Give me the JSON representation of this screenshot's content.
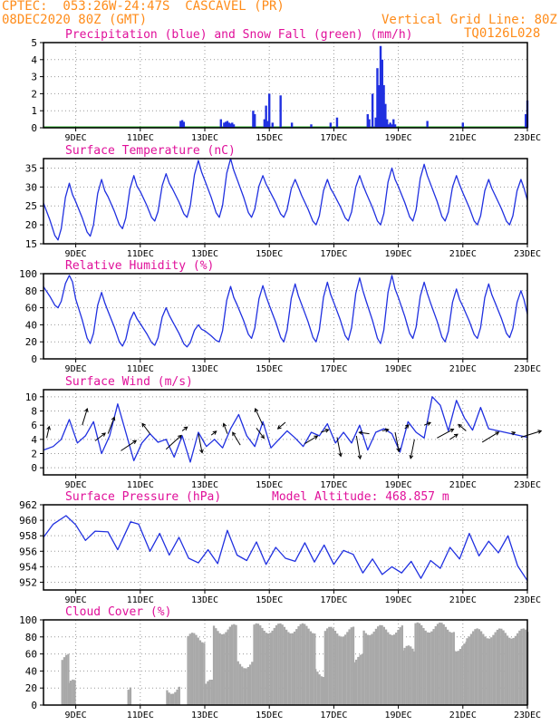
{
  "header": {
    "line1": "CPTEC:  053:26W-24:47S  CASCAVEL (PR)",
    "line2_left": "08DEC2020 80Z (GMT)",
    "line2_right": "Vertical Grid Line: 80Z",
    "line3_right": "TQ0126L028"
  },
  "colors": {
    "line": "#2030e0",
    "snow": "#22aa22",
    "cloud": "#a8a8a8",
    "title": "#e0109a",
    "header": "#ff8c1a"
  },
  "x_axis": {
    "labels": [
      "9DEC",
      "11DEC",
      "13DEC",
      "15DEC",
      "17DEC",
      "19DEC",
      "21DEC",
      "23DEC"
    ],
    "x_positions_days": [
      1,
      3,
      5,
      7,
      9,
      11,
      13,
      15
    ],
    "range_days": [
      0,
      15
    ]
  },
  "chart_data": [
    {
      "type": "bar",
      "title": "Precipitation (blue) and Snow Fall (green) (mm/h)",
      "ylim": [
        0,
        5
      ],
      "yticks": [
        0,
        1,
        2,
        3,
        4,
        5
      ],
      "series": [
        {
          "name": "Precipitation",
          "x": [
            4.25,
            4.3,
            4.35,
            5.5,
            5.6,
            5.65,
            5.7,
            5.75,
            5.8,
            5.85,
            5.9,
            6.5,
            6.55,
            6.85,
            6.9,
            6.95,
            7.0,
            7.1,
            7.35,
            7.7,
            8.3,
            8.9,
            9.1,
            10.05,
            10.1,
            10.2,
            10.3,
            10.35,
            10.4,
            10.45,
            10.5,
            10.55,
            10.6,
            10.65,
            10.7,
            10.75,
            10.8,
            10.85,
            10.9,
            11.9,
            13.0,
            14.95,
            15.0
          ],
          "values": [
            0.4,
            0.45,
            0.35,
            0.5,
            0.3,
            0.35,
            0.4,
            0.3,
            0.25,
            0.3,
            0.2,
            1.0,
            0.8,
            0.5,
            1.3,
            0.4,
            2.0,
            0.3,
            1.9,
            0.3,
            0.2,
            0.3,
            0.6,
            0.8,
            0.5,
            2.0,
            0.6,
            3.5,
            2.5,
            4.8,
            4.0,
            2.5,
            1.4,
            0.5,
            0.2,
            0.3,
            0.2,
            0.5,
            0.2,
            0.4,
            0.3,
            0.8,
            1.6
          ]
        },
        {
          "name": "Snow Fall",
          "values_all_zero": true
        }
      ]
    },
    {
      "type": "line",
      "title": "Surface Temperature (nC)",
      "ylim": [
        15,
        37.5
      ],
      "yticks": [
        15,
        20,
        25,
        30,
        35
      ],
      "daily_pattern": {
        "minima": [
          16,
          17,
          19,
          21,
          22,
          22,
          22,
          22,
          20,
          21,
          20,
          21,
          21,
          20,
          20
        ],
        "maxima": [
          31,
          32,
          33,
          33.5,
          37,
          37.5,
          33,
          32,
          32,
          33,
          35,
          36,
          33,
          32,
          32,
          33
        ]
      }
    },
    {
      "type": "line",
      "title": "Relative Humidity (%)",
      "ylim": [
        0,
        100
      ],
      "yticks": [
        0,
        20,
        40,
        60,
        80,
        100
      ],
      "daily_pattern": {
        "minima": [
          60,
          18,
          15,
          16,
          14,
          20,
          24,
          20,
          20,
          22,
          18,
          24,
          20,
          24,
          25
        ],
        "maxima": [
          98,
          78,
          55,
          60,
          40,
          85,
          86,
          88,
          90,
          95,
          98,
          90,
          82,
          88,
          80
        ]
      }
    },
    {
      "type": "line",
      "title": "Surface Wind (m/s)",
      "ylim": [
        -1,
        11
      ],
      "yticks": [
        0,
        2,
        4,
        6,
        8,
        10
      ],
      "speed": [
        2.5,
        3.0,
        4.0,
        6.8,
        3.5,
        4.5,
        6.5,
        2.0,
        4.5,
        9.0,
        5.0,
        1.0,
        3.5,
        4.8,
        3.6,
        4.0,
        1.5,
        4.5,
        0.8,
        5.0,
        3.0,
        4.0,
        2.8,
        5.5,
        7.5,
        4.5,
        3.0,
        6.5,
        2.8,
        4.0,
        5.2,
        4.2,
        3.0,
        5.0,
        4.5,
        6.2,
        3.5,
        5.0,
        3.5,
        6.0,
        2.5,
        5.0,
        5.5,
        4.8,
        2.2,
        6.5,
        5.0,
        4.2,
        10.0,
        8.8,
        5.2,
        9.5,
        7.0,
        5.3,
        8.5,
        5.5,
        4.3
      ],
      "speed_x_days": [
        0,
        0.3,
        0.55,
        0.8,
        1.05,
        1.3,
        1.55,
        1.8,
        2.05,
        2.3,
        2.55,
        2.8,
        3.05,
        3.3,
        3.55,
        3.8,
        4.05,
        4.3,
        4.55,
        4.8,
        5.05,
        5.3,
        5.55,
        5.8,
        6.05,
        6.3,
        6.55,
        6.8,
        7.05,
        7.3,
        7.55,
        7.8,
        8.05,
        8.3,
        8.55,
        8.8,
        9.05,
        9.3,
        9.55,
        9.8,
        10.05,
        10.3,
        10.55,
        10.8,
        11.05,
        11.3,
        11.55,
        11.8,
        12.05,
        12.3,
        12.55,
        12.8,
        13.05,
        13.3,
        13.55,
        13.8,
        15
      ],
      "vectors": [
        {
          "x": 0.1,
          "y": 4.2,
          "u": 0.2,
          "v": 0.9
        },
        {
          "x": 1.2,
          "y": 6.0,
          "u": 0.4,
          "v": 1.3
        },
        {
          "x": 1.6,
          "y": 3.8,
          "u": 0.8,
          "v": 0.6
        },
        {
          "x": 2.0,
          "y": 4.8,
          "u": 0.5,
          "v": 1.3
        },
        {
          "x": 2.4,
          "y": 2.4,
          "u": 1.2,
          "v": 0.8
        },
        {
          "x": 3.3,
          "y": 4.8,
          "u": -0.6,
          "v": 0.8
        },
        {
          "x": 3.8,
          "y": 2.6,
          "u": 1.2,
          "v": 1.1
        },
        {
          "x": 4.3,
          "y": 5.2,
          "u": 0.4,
          "v": 0.3
        },
        {
          "x": 4.8,
          "y": 4.8,
          "u": 0.3,
          "v": -1.5
        },
        {
          "x": 5.2,
          "y": 4.6,
          "u": 0.4,
          "v": 0.3
        },
        {
          "x": 5.7,
          "y": 4.8,
          "u": -0.3,
          "v": 0.8
        },
        {
          "x": 6.1,
          "y": 3.2,
          "u": -0.6,
          "v": 1.0
        },
        {
          "x": 6.6,
          "y": 5.6,
          "u": 0.6,
          "v": -0.8
        },
        {
          "x": 6.8,
          "y": 6.0,
          "u": -0.6,
          "v": 1.3
        },
        {
          "x": 7.5,
          "y": 6.4,
          "u": -0.6,
          "v": -0.5
        },
        {
          "x": 8.1,
          "y": 3.4,
          "u": 1.0,
          "v": 0.6
        },
        {
          "x": 8.6,
          "y": 5.0,
          "u": 0.6,
          "v": 0.2
        },
        {
          "x": 9.1,
          "y": 4.3,
          "u": 0.3,
          "v": -1.5
        },
        {
          "x": 9.7,
          "y": 4.5,
          "u": 0.3,
          "v": -1.8
        },
        {
          "x": 10.1,
          "y": 4.8,
          "u": -0.8,
          "v": 0.1
        },
        {
          "x": 10.5,
          "y": 5.2,
          "u": 0.5,
          "v": 0.1
        },
        {
          "x": 10.9,
          "y": 5.0,
          "u": 0.3,
          "v": -1.5
        },
        {
          "x": 11.2,
          "y": 5.5,
          "u": 0.3,
          "v": 0.3
        },
        {
          "x": 11.5,
          "y": 4.0,
          "u": -0.3,
          "v": -1.5
        },
        {
          "x": 11.8,
          "y": 6.0,
          "u": 0.5,
          "v": 0.2
        },
        {
          "x": 12.2,
          "y": 4.2,
          "u": 1.3,
          "v": 0.7
        },
        {
          "x": 12.6,
          "y": 4.0,
          "u": 0.6,
          "v": 0.4
        },
        {
          "x": 13.1,
          "y": 5.2,
          "u": -0.6,
          "v": 0.5
        },
        {
          "x": 13.6,
          "y": 3.6,
          "u": 1.3,
          "v": 0.8
        },
        {
          "x": 14.5,
          "y": 4.8,
          "u": 0.3,
          "v": 0.1
        },
        {
          "x": 14.8,
          "y": 4.3,
          "u": 1.6,
          "v": 0.5
        }
      ]
    },
    {
      "type": "line",
      "title": "Surface Pressure (hPa)",
      "subtitle": "Model Altitude: 468.857 m",
      "ylim": [
        951,
        962
      ],
      "yticks": [
        952,
        954,
        956,
        958,
        960,
        962
      ],
      "points": [
        [
          0,
          957.8
        ],
        [
          0.3,
          959.5
        ],
        [
          0.7,
          960.6
        ],
        [
          1.0,
          959.4
        ],
        [
          1.3,
          957.4
        ],
        [
          1.6,
          958.6
        ],
        [
          2.0,
          958.5
        ],
        [
          2.3,
          956.2
        ],
        [
          2.7,
          959.8
        ],
        [
          2.95,
          959.5
        ],
        [
          3.3,
          956.0
        ],
        [
          3.6,
          958.3
        ],
        [
          3.9,
          955.5
        ],
        [
          4.2,
          957.8
        ],
        [
          4.5,
          955.1
        ],
        [
          4.8,
          954.5
        ],
        [
          5.1,
          956.2
        ],
        [
          5.4,
          954.4
        ],
        [
          5.7,
          958.7
        ],
        [
          6.0,
          955.5
        ],
        [
          6.3,
          954.8
        ],
        [
          6.6,
          957.2
        ],
        [
          6.9,
          954.3
        ],
        [
          7.2,
          956.5
        ],
        [
          7.5,
          955.1
        ],
        [
          7.8,
          954.7
        ],
        [
          8.1,
          957.1
        ],
        [
          8.4,
          954.6
        ],
        [
          8.7,
          956.8
        ],
        [
          9.0,
          954.3
        ],
        [
          9.3,
          956.1
        ],
        [
          9.6,
          955.6
        ],
        [
          9.9,
          953.2
        ],
        [
          10.2,
          955.0
        ],
        [
          10.5,
          953.0
        ],
        [
          10.8,
          954.0
        ],
        [
          11.1,
          953.2
        ],
        [
          11.4,
          954.7
        ],
        [
          11.7,
          952.5
        ],
        [
          12.0,
          954.8
        ],
        [
          12.3,
          953.8
        ],
        [
          12.6,
          956.5
        ],
        [
          12.9,
          955.0
        ],
        [
          13.2,
          958.3
        ],
        [
          13.5,
          955.4
        ],
        [
          13.8,
          957.3
        ],
        [
          14.1,
          955.8
        ],
        [
          14.4,
          958.0
        ],
        [
          14.7,
          954.1
        ],
        [
          15.0,
          952.2
        ]
      ]
    },
    {
      "type": "bar",
      "title": "Cloud Cover (%)",
      "ylim": [
        0,
        100
      ],
      "yticks": [
        0,
        20,
        40,
        60,
        80,
        100
      ],
      "coverage_segments": [
        {
          "from": 0,
          "to": 0.55,
          "value": 0
        },
        {
          "from": 0.55,
          "to": 0.75,
          "value": 60
        },
        {
          "from": 0.75,
          "to": 1.0,
          "value": 30
        },
        {
          "from": 1.0,
          "to": 3.8,
          "value": 0
        },
        {
          "from": 2.6,
          "to": 2.7,
          "value": 22
        },
        {
          "from": 3.8,
          "to": 4.2,
          "value": 25
        },
        {
          "from": 4.2,
          "to": 4.45,
          "value": 0
        },
        {
          "from": 4.45,
          "to": 5.0,
          "value": 85
        },
        {
          "from": 5.0,
          "to": 5.25,
          "value": 30
        },
        {
          "from": 5.25,
          "to": 6.0,
          "value": 95
        },
        {
          "from": 6.0,
          "to": 6.5,
          "value": 55
        },
        {
          "from": 6.5,
          "to": 8.4,
          "value": 96
        },
        {
          "from": 8.4,
          "to": 8.7,
          "value": 45
        },
        {
          "from": 8.7,
          "to": 9.6,
          "value": 92
        },
        {
          "from": 9.6,
          "to": 9.9,
          "value": 60
        },
        {
          "from": 9.9,
          "to": 11.1,
          "value": 94
        },
        {
          "from": 11.1,
          "to": 11.5,
          "value": 70
        },
        {
          "from": 11.5,
          "to": 12.7,
          "value": 97
        },
        {
          "from": 12.7,
          "to": 13.1,
          "value": 75
        },
        {
          "from": 13.1,
          "to": 15.0,
          "value": 90
        }
      ]
    }
  ]
}
